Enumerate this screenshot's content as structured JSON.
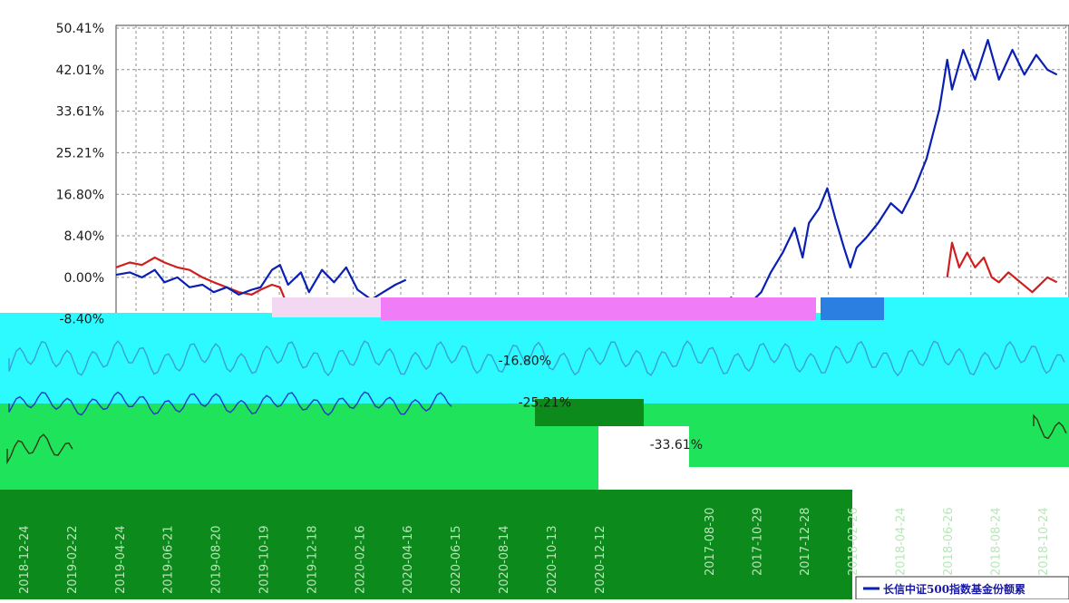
{
  "colors": {
    "background": "#ffffff",
    "grid": "#8c8c8c",
    "fund_line": "#0a1fb4",
    "benchmark_line": "#d01e1e",
    "glitch_cyan": "#2cfaff",
    "glitch_green": "#1fe35a",
    "glitch_darkgreen": "#0d8a1c",
    "glitch_magenta": "#f07df7",
    "glitch_blue": "#2a7fe0"
  },
  "chart_data": [
    {
      "type": "line",
      "title": "",
      "xlabel": "",
      "ylabel": "",
      "y_ticks": [
        "50.41%",
        "42.01%",
        "33.61%",
        "25.21%",
        "16.80%",
        "8.40%",
        "0.00%",
        "-8.40%",
        "-16.80%",
        "-25.21%",
        "-33.61%"
      ],
      "ylim": [
        -33.61,
        50.41
      ],
      "x_ticks": [
        "2018-12-24",
        "2019-02-22",
        "2019-04-24",
        "2019-06-21",
        "2019-08-20",
        "2019-10-19",
        "2019-12-18",
        "2020-02-16",
        "2020-04-16",
        "2020-06-15",
        "2020-08-14",
        "2020-10-13",
        "2020-12-12"
      ],
      "grid": true,
      "series": [
        {
          "name": "",
          "color": "#0a1fb4",
          "points": [
            [
              "2018-12-24",
              0.5
            ],
            [
              "2019-01-10",
              1.0
            ],
            [
              "2019-01-25",
              0.0
            ],
            [
              "2019-02-10",
              1.5
            ],
            [
              "2019-02-22",
              -1.0
            ],
            [
              "2019-03-10",
              0.0
            ],
            [
              "2019-03-25",
              -2.0
            ],
            [
              "2019-04-10",
              -1.5
            ],
            [
              "2019-04-24",
              -3.0
            ],
            [
              "2019-05-10",
              -2.0
            ],
            [
              "2019-05-25",
              -3.5
            ],
            [
              "2019-06-10",
              -2.5
            ],
            [
              "2019-06-21",
              -2.0
            ],
            [
              "2019-07-05",
              1.5
            ],
            [
              "2019-07-15",
              2.5
            ],
            [
              "2019-07-25",
              -1.5
            ],
            [
              "2019-08-10",
              1.0
            ],
            [
              "2019-08-20",
              -3.0
            ],
            [
              "2019-09-05",
              1.5
            ],
            [
              "2019-09-20",
              -1.0
            ],
            [
              "2019-10-05",
              2.0
            ],
            [
              "2019-10-19",
              -2.5
            ],
            [
              "2019-11-05",
              -4.5
            ],
            [
              "2019-11-20",
              -3.0
            ],
            [
              "2019-12-05",
              -1.5
            ],
            [
              "2019-12-18",
              -0.5
            ]
          ]
        },
        {
          "name": "",
          "color": "#d01e1e",
          "points": [
            [
              "2018-12-24",
              2.0
            ],
            [
              "2019-01-10",
              3.0
            ],
            [
              "2019-01-25",
              2.5
            ],
            [
              "2019-02-10",
              4.0
            ],
            [
              "2019-02-22",
              3.0
            ],
            [
              "2019-03-10",
              2.0
            ],
            [
              "2019-03-25",
              1.5
            ],
            [
              "2019-04-10",
              0.0
            ],
            [
              "2019-04-24",
              -1.0
            ],
            [
              "2019-05-10",
              -2.0
            ],
            [
              "2019-05-25",
              -3.0
            ],
            [
              "2019-06-10",
              -3.5
            ],
            [
              "2019-06-21",
              -2.5
            ],
            [
              "2019-07-05",
              -1.5
            ],
            [
              "2019-07-15",
              -2.0
            ],
            [
              "2019-07-25",
              -6.0
            ],
            [
              "2019-08-10",
              -7.0
            ],
            [
              "2019-08-20",
              -8.0
            ]
          ]
        }
      ]
    },
    {
      "type": "line",
      "title": "",
      "xlabel": "",
      "ylabel": "",
      "x_ticks": [
        "2017-08-30",
        "2017-10-29",
        "2017-12-28",
        "2018-02-26",
        "2018-04-24",
        "2018-06-26",
        "2018-08-24",
        "2018-10-24"
      ],
      "grid": true,
      "legend": {
        "position": "bottom-right",
        "entries": [
          "长信中证500指数基金份额累"
        ]
      },
      "series": [
        {
          "name": "长信中证500指数基金份额累",
          "color": "#0a1fb4",
          "points": [
            [
              "2017-09-20",
              -4.0
            ],
            [
              "2017-10-10",
              -6.0
            ],
            [
              "2017-10-29",
              -3.0
            ],
            [
              "2017-11-10",
              1.0
            ],
            [
              "2017-11-25",
              5.0
            ],
            [
              "2017-12-10",
              10.0
            ],
            [
              "2017-12-20",
              4.0
            ],
            [
              "2017-12-28",
              11.0
            ],
            [
              "2018-01-10",
              14.0
            ],
            [
              "2018-01-20",
              18.0
            ],
            [
              "2018-01-30",
              12.0
            ],
            [
              "2018-02-10",
              6.0
            ],
            [
              "2018-02-18",
              2.0
            ],
            [
              "2018-02-26",
              6.0
            ],
            [
              "2018-03-10",
              8.0
            ],
            [
              "2018-03-25",
              11.0
            ],
            [
              "2018-04-10",
              15.0
            ],
            [
              "2018-04-24",
              13.0
            ],
            [
              "2018-05-10",
              18.0
            ],
            [
              "2018-05-25",
              24.0
            ],
            [
              "2018-06-10",
              34.0
            ],
            [
              "2018-06-20",
              44.0
            ],
            [
              "2018-06-26",
              38.0
            ],
            [
              "2018-07-10",
              46.0
            ],
            [
              "2018-07-25",
              40.0
            ],
            [
              "2018-08-10",
              48.0
            ],
            [
              "2018-08-24",
              40.0
            ],
            [
              "2018-09-10",
              46.0
            ],
            [
              "2018-09-25",
              41.0
            ],
            [
              "2018-10-10",
              45.0
            ],
            [
              "2018-10-24",
              42.0
            ],
            [
              "2018-11-05",
              41.0
            ]
          ]
        },
        {
          "name": "",
          "color": "#d01e1e",
          "points": [
            [
              "2018-06-20",
              0.0
            ],
            [
              "2018-06-26",
              7.0
            ],
            [
              "2018-07-05",
              2.0
            ],
            [
              "2018-07-15",
              5.0
            ],
            [
              "2018-07-25",
              2.0
            ],
            [
              "2018-08-05",
              4.0
            ],
            [
              "2018-08-15",
              0.0
            ],
            [
              "2018-08-24",
              -1.0
            ],
            [
              "2018-09-05",
              1.0
            ],
            [
              "2018-09-20",
              -1.0
            ],
            [
              "2018-10-05",
              -3.0
            ],
            [
              "2018-10-24",
              0.0
            ],
            [
              "2018-11-05",
              -1.0
            ]
          ]
        }
      ]
    }
  ]
}
